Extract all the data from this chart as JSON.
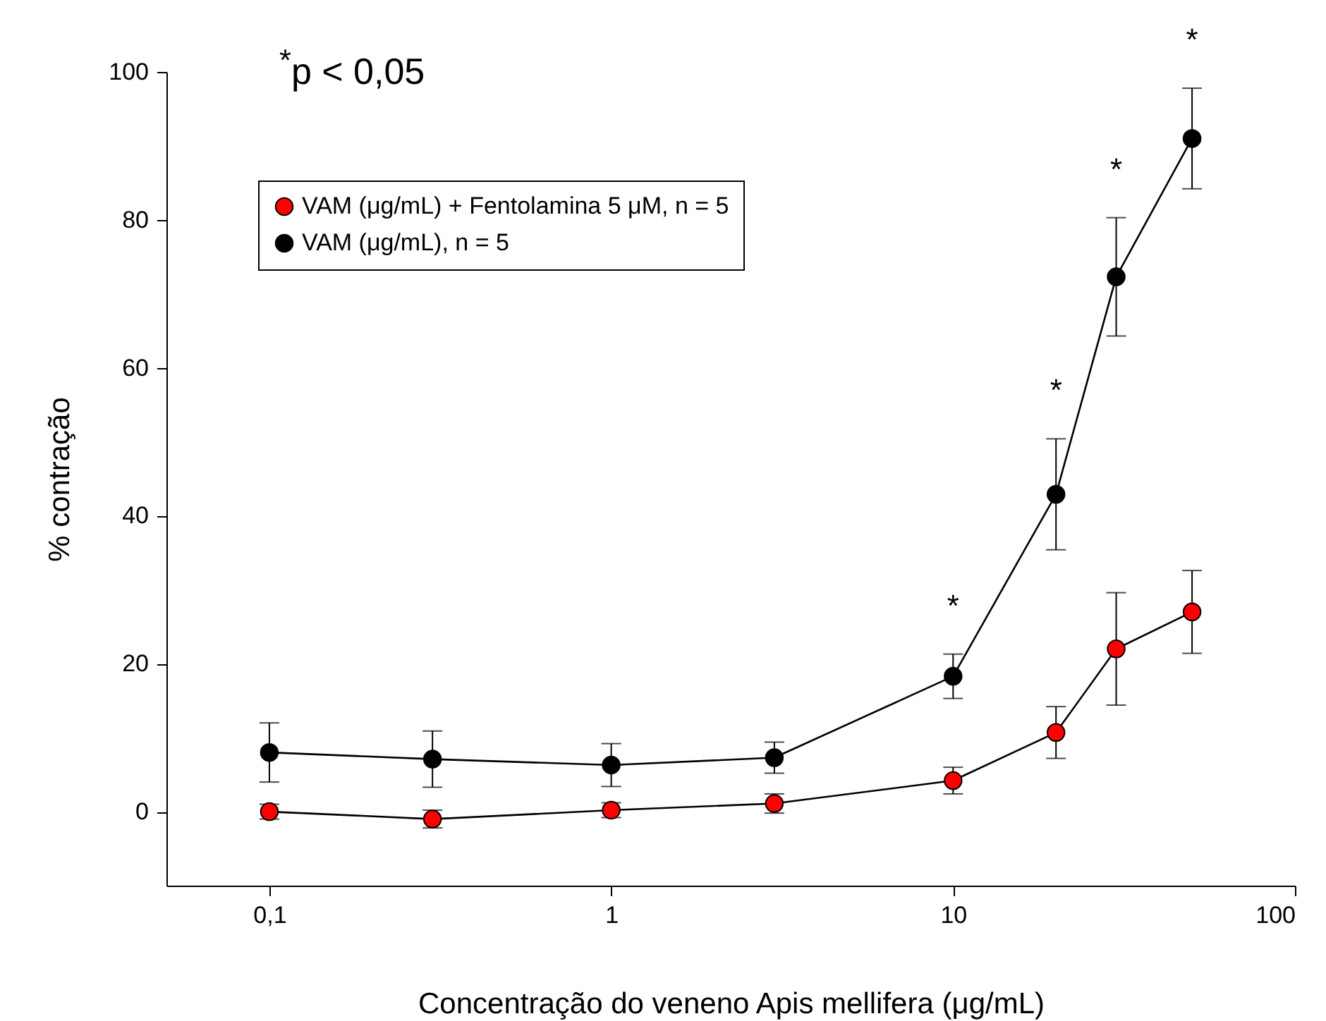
{
  "chart_data": {
    "type": "line",
    "xlabel": "Concentração do veneno Apis mellifera (μg/mL)",
    "ylabel": "% contração",
    "x": [
      0.1,
      0.3,
      1,
      3,
      10,
      20,
      30,
      50
    ],
    "series": [
      {
        "name": "VAM (μg/mL) + Fentolamina 5 μM, n = 5",
        "color": "#ff0000",
        "values": [
          0,
          -1,
          0.2,
          1.1,
          4.2,
          10.7,
          22,
          27
        ],
        "errors": [
          1,
          1.2,
          1,
          1.3,
          1.8,
          3.5,
          7.6,
          5.6
        ]
      },
      {
        "name": "VAM (μg/mL), n = 5",
        "color": "#000000",
        "values": [
          8,
          7.1,
          6.3,
          7.3,
          18.3,
          42.9,
          72.3,
          91
        ],
        "errors": [
          4,
          3.8,
          2.9,
          2.1,
          3,
          7.5,
          8,
          6.8
        ]
      }
    ],
    "log": "x",
    "xlim": [
      0.05,
      100
    ],
    "ylim": [
      -10,
      100
    ],
    "xticks": [
      {
        "value": 0.1,
        "label": "0,1"
      },
      1,
      10,
      100
    ],
    "yticks": [
      0,
      20,
      40,
      60,
      80,
      100
    ],
    "marker": "circle",
    "line_style": "solid",
    "legend": "top left",
    "annotations": [
      "$^{*}$p < 0,05",
      {
        "text": "*",
        "x": 10,
        "y": 18.3
      },
      {
        "text": "*",
        "x": 20,
        "y": 42.9
      },
      {
        "text": "*",
        "x": 30,
        "y": 72.3
      },
      {
        "text": "*",
        "x": 50,
        "y": 91
      }
    ]
  }
}
